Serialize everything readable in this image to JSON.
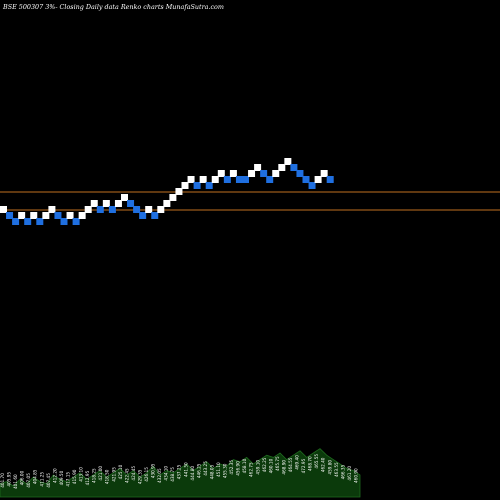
{
  "header": {
    "title": "BSE 500307 3%-  Closing Daily data  Renko  charts MunafaSutra.com"
  },
  "colors": {
    "background": "#000000",
    "up_brick": "#ffffff",
    "down_brick": "#1f6fe0",
    "reference_line": "#c07020",
    "volume_fill": "#0b3a0b",
    "volume_stroke": "#1f6b1f"
  },
  "chart_data": {
    "type": "renko",
    "title": "BSE 500307 3%-  Closing Daily data  Renko  charts MunafaSutra.com",
    "brick_size_label": "3%",
    "reference_lines": [
      {
        "name": "upper",
        "y": 192
      },
      {
        "name": "lower",
        "y": 210
      }
    ],
    "bricks": [
      {
        "dir": "up",
        "level": 7
      },
      {
        "dir": "down",
        "level": 6
      },
      {
        "dir": "down",
        "level": 5
      },
      {
        "dir": "up",
        "level": 6
      },
      {
        "dir": "down",
        "level": 5
      },
      {
        "dir": "up",
        "level": 6
      },
      {
        "dir": "down",
        "level": 5
      },
      {
        "dir": "up",
        "level": 6
      },
      {
        "dir": "up",
        "level": 7
      },
      {
        "dir": "down",
        "level": 6
      },
      {
        "dir": "down",
        "level": 5
      },
      {
        "dir": "up",
        "level": 6
      },
      {
        "dir": "down",
        "level": 5
      },
      {
        "dir": "up",
        "level": 6
      },
      {
        "dir": "up",
        "level": 7
      },
      {
        "dir": "up",
        "level": 8
      },
      {
        "dir": "down",
        "level": 7
      },
      {
        "dir": "up",
        "level": 8
      },
      {
        "dir": "down",
        "level": 7
      },
      {
        "dir": "up",
        "level": 8
      },
      {
        "dir": "up",
        "level": 9
      },
      {
        "dir": "down",
        "level": 8
      },
      {
        "dir": "down",
        "level": 7
      },
      {
        "dir": "down",
        "level": 6
      },
      {
        "dir": "up",
        "level": 7
      },
      {
        "dir": "down",
        "level": 6
      },
      {
        "dir": "up",
        "level": 7
      },
      {
        "dir": "up",
        "level": 8
      },
      {
        "dir": "up",
        "level": 9
      },
      {
        "dir": "up",
        "level": 10
      },
      {
        "dir": "up",
        "level": 11
      },
      {
        "dir": "up",
        "level": 12
      },
      {
        "dir": "down",
        "level": 11
      },
      {
        "dir": "up",
        "level": 12
      },
      {
        "dir": "down",
        "level": 11
      },
      {
        "dir": "up",
        "level": 12
      },
      {
        "dir": "up",
        "level": 13
      },
      {
        "dir": "down",
        "level": 12
      },
      {
        "dir": "up",
        "level": 13
      },
      {
        "dir": "down",
        "level": 12
      },
      {
        "dir": "down",
        "level": 12
      },
      {
        "dir": "up",
        "level": 13
      },
      {
        "dir": "up",
        "level": 14
      },
      {
        "dir": "down",
        "level": 13
      },
      {
        "dir": "down",
        "level": 12
      },
      {
        "dir": "up",
        "level": 13
      },
      {
        "dir": "up",
        "level": 14
      },
      {
        "dir": "up",
        "level": 15
      },
      {
        "dir": "down",
        "level": 14
      },
      {
        "dir": "down",
        "level": 13
      },
      {
        "dir": "down",
        "level": 12
      },
      {
        "dir": "down",
        "level": 11
      },
      {
        "dir": "up",
        "level": 12
      },
      {
        "dir": "up",
        "level": 13
      },
      {
        "dir": "down",
        "level": 12
      }
    ],
    "volume": [
      6,
      7,
      5,
      8,
      6,
      9,
      7,
      6,
      10,
      8,
      7,
      9,
      11,
      8,
      10,
      12,
      9,
      11,
      13,
      10,
      12,
      9,
      11,
      14,
      10,
      12,
      11,
      13,
      15,
      12,
      14,
      16,
      13,
      15,
      14,
      17,
      16,
      18,
      15,
      17,
      19,
      18,
      20,
      17,
      19,
      21,
      18,
      20,
      22,
      19,
      17,
      15,
      13,
      12,
      10
    ],
    "price_labels": [
      "401.70",
      "405.95",
      "401.60",
      "406.00",
      "407.05",
      "404.85",
      "411.25",
      "407.45",
      "412.20",
      "409.50",
      "417.15",
      "415.90",
      "413.10",
      "412.95",
      "418.25",
      "421.00",
      "418.50",
      "421.95",
      "425.10",
      "422.45",
      "424.45",
      "429.35",
      "426.15",
      "430.95",
      "432.05",
      "434.10",
      "438.75",
      "437.25",
      "441.50",
      "444.80",
      "446.25",
      "443.25",
      "448.05",
      "451.10",
      "455.30",
      "452.35",
      "456.90",
      "458.10",
      "462.75",
      "459.10",
      "462.25",
      "460.10",
      "465.75",
      "468.90",
      "464.55",
      "469.40",
      "472.95",
      "468.70",
      "465.55",
      "462.40",
      "459.80",
      "463.55",
      "466.35",
      "461.20",
      "460.90"
    ]
  }
}
